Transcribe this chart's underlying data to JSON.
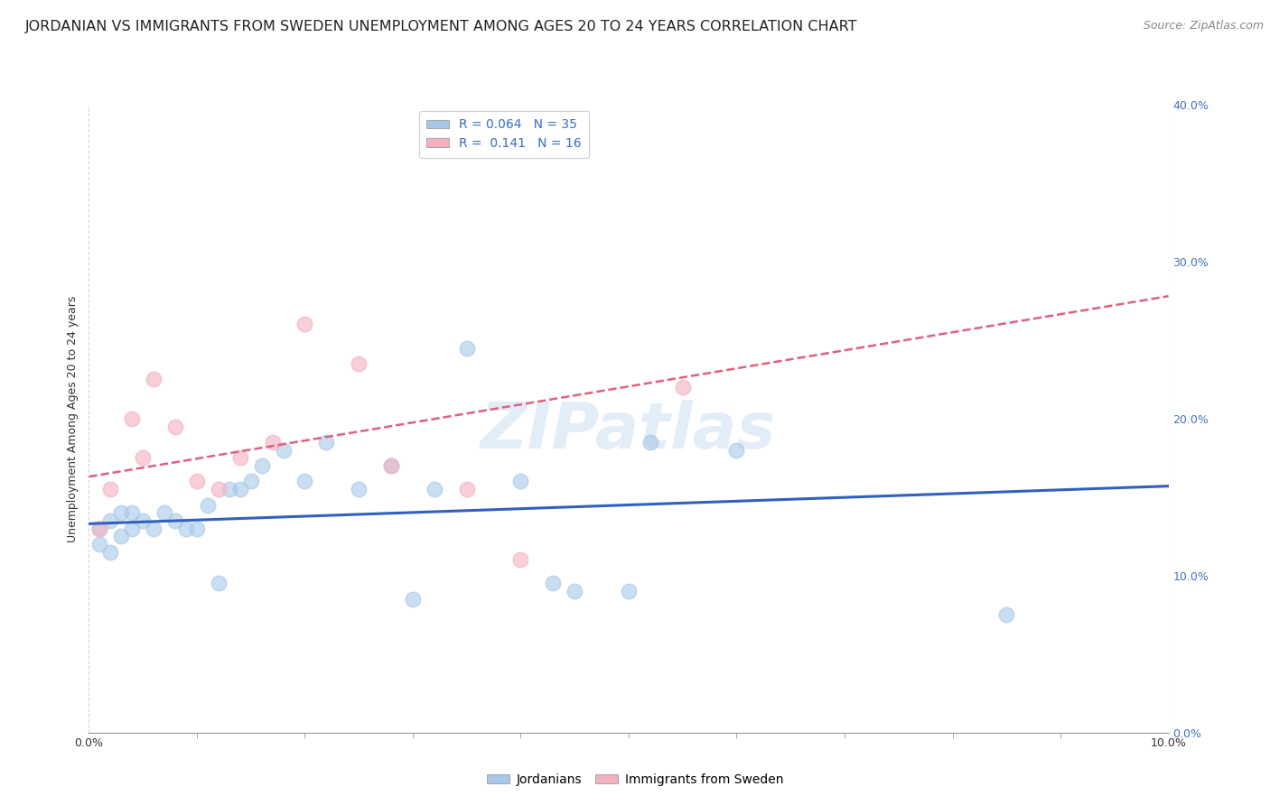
{
  "title": "JORDANIAN VS IMMIGRANTS FROM SWEDEN UNEMPLOYMENT AMONG AGES 20 TO 24 YEARS CORRELATION CHART",
  "source": "Source: ZipAtlas.com",
  "ylabel": "Unemployment Among Ages 20 to 24 years",
  "xlim": [
    0.0,
    0.1
  ],
  "ylim": [
    0.0,
    0.4
  ],
  "watermark": "ZIPatlas",
  "legend_entries": [
    {
      "label": "Jordanians",
      "R": "0.064",
      "N": "35"
    },
    {
      "label": "Immigrants from Sweden",
      "R": "0.141",
      "N": "16"
    }
  ],
  "blue_scatter_x": [
    0.001,
    0.001,
    0.002,
    0.002,
    0.003,
    0.003,
    0.004,
    0.004,
    0.005,
    0.006,
    0.007,
    0.008,
    0.009,
    0.01,
    0.011,
    0.012,
    0.013,
    0.014,
    0.015,
    0.016,
    0.018,
    0.02,
    0.022,
    0.025,
    0.028,
    0.03,
    0.032,
    0.035,
    0.04,
    0.043,
    0.045,
    0.05,
    0.052,
    0.06,
    0.085
  ],
  "blue_scatter_y": [
    0.12,
    0.13,
    0.115,
    0.135,
    0.125,
    0.14,
    0.13,
    0.14,
    0.135,
    0.13,
    0.14,
    0.135,
    0.13,
    0.13,
    0.145,
    0.095,
    0.155,
    0.155,
    0.16,
    0.17,
    0.18,
    0.16,
    0.185,
    0.155,
    0.17,
    0.085,
    0.155,
    0.245,
    0.16,
    0.095,
    0.09,
    0.09,
    0.185,
    0.18,
    0.075
  ],
  "pink_scatter_x": [
    0.001,
    0.002,
    0.004,
    0.005,
    0.006,
    0.008,
    0.01,
    0.012,
    0.014,
    0.017,
    0.02,
    0.025,
    0.028,
    0.035,
    0.04,
    0.055
  ],
  "pink_scatter_y": [
    0.13,
    0.155,
    0.2,
    0.175,
    0.225,
    0.195,
    0.16,
    0.155,
    0.175,
    0.185,
    0.26,
    0.235,
    0.17,
    0.155,
    0.11,
    0.22
  ],
  "blue_line_x": [
    0.0,
    0.1
  ],
  "blue_line_y": [
    0.133,
    0.157
  ],
  "pink_line_x": [
    0.0,
    0.1
  ],
  "pink_line_y": [
    0.163,
    0.278
  ],
  "blue_scatter_color": "#a8c8e8",
  "pink_scatter_color": "#f4b0c0",
  "blue_line_color": "#3060c0",
  "pink_line_color": "#e06080",
  "grid_color": "#cccccc",
  "bg_color": "#ffffff",
  "title_fontsize": 11.5,
  "source_fontsize": 9,
  "axis_tick_fontsize": 9,
  "ylabel_fontsize": 9,
  "legend_fontsize": 10,
  "watermark_fontsize": 52,
  "watermark_color": "#c0d8f0",
  "watermark_alpha": 0.45,
  "right_tick_color": "#4472c4"
}
